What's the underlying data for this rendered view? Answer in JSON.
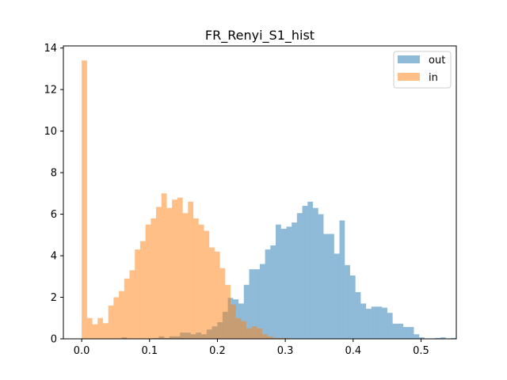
{
  "chart_data": {
    "type": "histogram",
    "title": "FR_Renyi_S1_hist",
    "xlim": [
      -0.027,
      0.552
    ],
    "ylim": [
      0,
      14.1
    ],
    "xticks": [
      0.0,
      0.1,
      0.2,
      0.3,
      0.4,
      0.5
    ],
    "xtick_labels": [
      "0.0",
      "0.1",
      "0.2",
      "0.3",
      "0.4",
      "0.5"
    ],
    "yticks": [
      0,
      2,
      4,
      6,
      8,
      10,
      12,
      14
    ],
    "ytick_labels": [
      "0",
      "2",
      "4",
      "6",
      "8",
      "10",
      "12",
      "14"
    ],
    "legend_position": "top-right",
    "alpha": 0.5,
    "series": [
      {
        "name": "out",
        "color": "#1f77b4",
        "bin_start": 0.0588,
        "bin_width": 0.00783,
        "counts": [
          0.07,
          0,
          0,
          0,
          0,
          0,
          0.04,
          0.12,
          0.04,
          0.12,
          0.12,
          0.3,
          0.3,
          0.22,
          0.3,
          0.22,
          0.45,
          0.6,
          0.8,
          1.3,
          1.97,
          1.9,
          1.7,
          2.6,
          3.35,
          3.35,
          3.6,
          4.3,
          4.5,
          5.5,
          5.3,
          5.4,
          5.6,
          6.05,
          6.4,
          6.6,
          6.3,
          6.0,
          5.05,
          5.05,
          4.1,
          5.7,
          3.55,
          3.05,
          2.25,
          1.7,
          1.45,
          1.55,
          1.55,
          1.5,
          1.25,
          0.73,
          0.73,
          0.57,
          0.57,
          0.22,
          0.07,
          0,
          0,
          0.04,
          0.07,
          0,
          0.04
        ]
      },
      {
        "name": "in",
        "color": "#ff7f0e",
        "bin_start": 0.0,
        "bin_width": 0.00783,
        "counts": [
          13.4,
          1.0,
          0.7,
          1.0,
          0.75,
          1.6,
          2.0,
          2.3,
          2.9,
          3.3,
          4.3,
          4.7,
          5.5,
          5.8,
          6.35,
          7.0,
          6.3,
          6.7,
          6.8,
          6.05,
          6.6,
          5.8,
          5.5,
          5.2,
          4.4,
          4.2,
          3.4,
          2.6,
          1.65,
          1.0,
          0.85,
          0.5,
          0.6,
          0.5,
          0.22,
          0.12,
          0.04,
          0.04,
          0.04
        ]
      }
    ]
  }
}
